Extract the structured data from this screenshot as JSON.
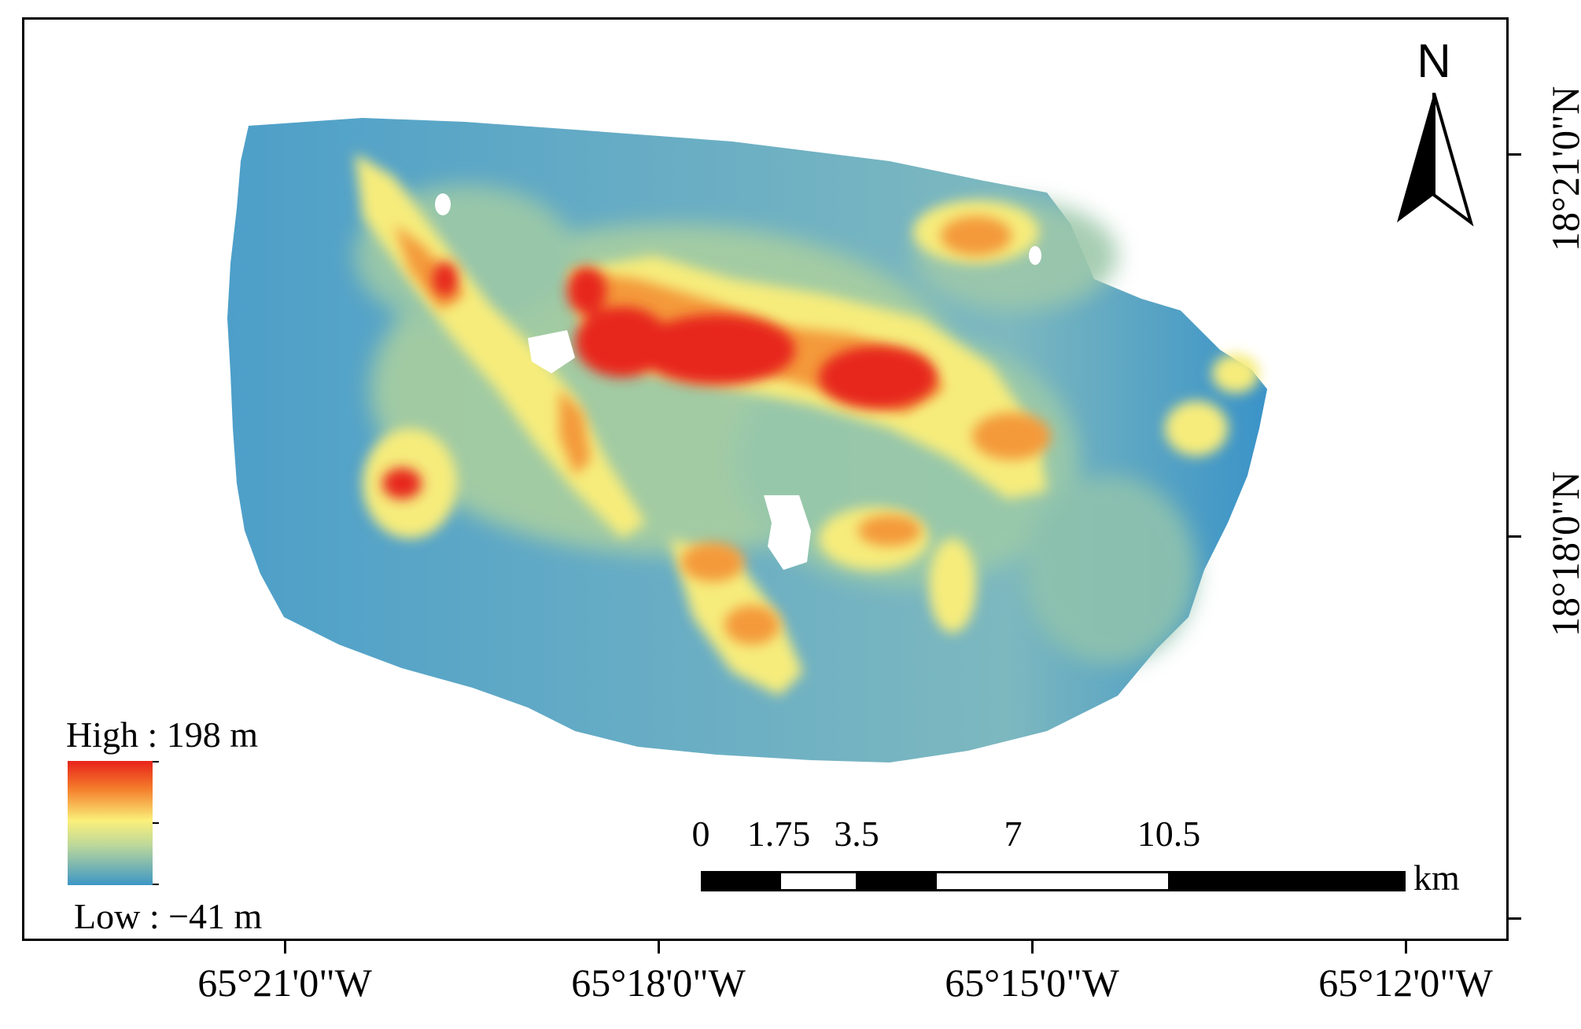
{
  "north": {
    "label": "N",
    "icon": "north-arrow-icon"
  },
  "legend": {
    "high_label": "High : 198 m",
    "low_label": "Low : −41 m",
    "high_value_m": 198,
    "low_value_m": -41,
    "ramp_colors": [
      "#e8231c",
      "#f47b2a",
      "#fbf07a",
      "#bcd89a",
      "#3c96c6"
    ]
  },
  "scale_bar": {
    "unit": "km",
    "labels": [
      "0",
      "1.75",
      "3.5",
      "7",
      "10.5"
    ],
    "values_km": [
      0,
      1.75,
      3.5,
      7,
      10.5
    ]
  },
  "graticule": {
    "longitude_labels": [
      "65°21'0\"W",
      "65°18'0\"W",
      "65°15'0\"W",
      "65°12'0\"W"
    ],
    "latitude_labels": [
      "18°21'0\"N",
      "18°18'0\"N"
    ]
  },
  "colors": {
    "low": "#3c96c6",
    "mid": "#fbf07a",
    "high": "#e8231c",
    "frame": "#000000"
  }
}
